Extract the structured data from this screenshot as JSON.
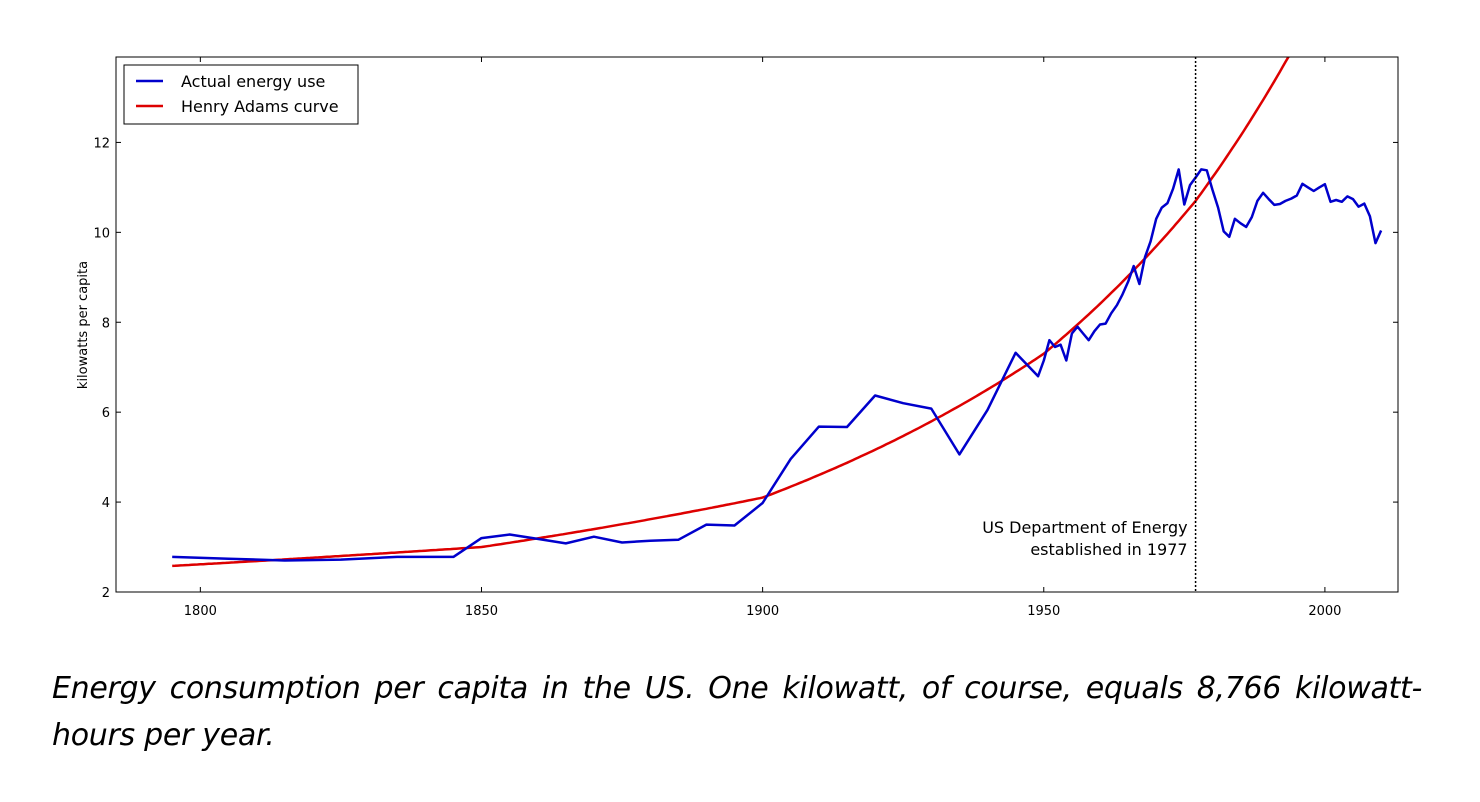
{
  "chart_data": {
    "type": "line",
    "title": "",
    "xlabel": "",
    "ylabel": "kilowatts per capita",
    "xlim": [
      1785,
      2013
    ],
    "ylim": [
      2,
      13.9
    ],
    "xticks": [
      1800,
      1850,
      1900,
      1950,
      2000
    ],
    "yticks": [
      2,
      4,
      6,
      8,
      10,
      12
    ],
    "grid": false,
    "legend_position": "top-left",
    "series": [
      {
        "name": "Actual energy use",
        "color": "#0000cc",
        "x": [
          1795,
          1805,
          1815,
          1825,
          1835,
          1845,
          1850,
          1855,
          1860,
          1865,
          1870,
          1875,
          1880,
          1885,
          1890,
          1895,
          1900,
          1905,
          1910,
          1915,
          1920,
          1925,
          1930,
          1935,
          1940,
          1945,
          1949,
          1950,
          1951,
          1952,
          1953,
          1954,
          1955,
          1956,
          1957,
          1958,
          1959,
          1960,
          1961,
          1962,
          1963,
          1964,
          1965,
          1966,
          1967,
          1968,
          1969,
          1970,
          1971,
          1972,
          1973,
          1974,
          1975,
          1976,
          1977,
          1978,
          1979,
          1980,
          1981,
          1982,
          1983,
          1984,
          1985,
          1986,
          1987,
          1988,
          1989,
          1990,
          1991,
          1992,
          1993,
          1994,
          1995,
          1996,
          1997,
          1998,
          1999,
          2000,
          2001,
          2002,
          2003,
          2004,
          2005,
          2006,
          2007,
          2008,
          2009,
          2010
        ],
        "values": [
          2.78,
          2.74,
          2.7,
          2.72,
          2.78,
          2.78,
          3.2,
          3.28,
          3.18,
          3.08,
          3.23,
          3.1,
          3.14,
          3.16,
          3.5,
          3.48,
          3.98,
          4.96,
          5.68,
          5.67,
          6.37,
          6.2,
          6.08,
          5.06,
          6.05,
          7.32,
          6.8,
          7.15,
          7.6,
          7.45,
          7.5,
          7.15,
          7.75,
          7.9,
          7.75,
          7.6,
          7.8,
          7.95,
          7.97,
          8.2,
          8.38,
          8.62,
          8.9,
          9.25,
          8.85,
          9.45,
          9.8,
          10.3,
          10.55,
          10.65,
          10.97,
          11.4,
          10.62,
          11.05,
          11.22,
          11.4,
          11.38,
          10.95,
          10.55,
          10.02,
          9.9,
          10.3,
          10.2,
          10.12,
          10.34,
          10.7,
          10.88,
          10.74,
          10.61,
          10.63,
          10.7,
          10.75,
          10.82,
          11.08,
          11.0,
          10.92,
          11.0,
          11.07,
          10.68,
          10.72,
          10.68,
          10.8,
          10.74,
          10.57,
          10.64,
          10.36,
          9.76,
          10.04
        ]
      },
      {
        "name": "Henry Adams curve",
        "color": "#dd0000",
        "model": "exponential",
        "x_range": [
          1795,
          2013
        ],
        "anchor_points": [
          [
            1795,
            2.58
          ],
          [
            1850,
            3.0
          ],
          [
            1900,
            4.1
          ],
          [
            1950,
            7.3
          ],
          [
            1977,
            10.7
          ],
          [
            1993.5,
            13.9
          ]
        ]
      }
    ],
    "annotations": [
      {
        "type": "vline",
        "x": 1977,
        "style": "dotted",
        "color": "#000000",
        "text_lines": [
          "US Department of Energy",
          "established in 1977"
        ]
      }
    ]
  },
  "caption": "Energy consumption per capita in the US. One kilowatt, of course, equals 8,766 kilowatt-hours per year."
}
